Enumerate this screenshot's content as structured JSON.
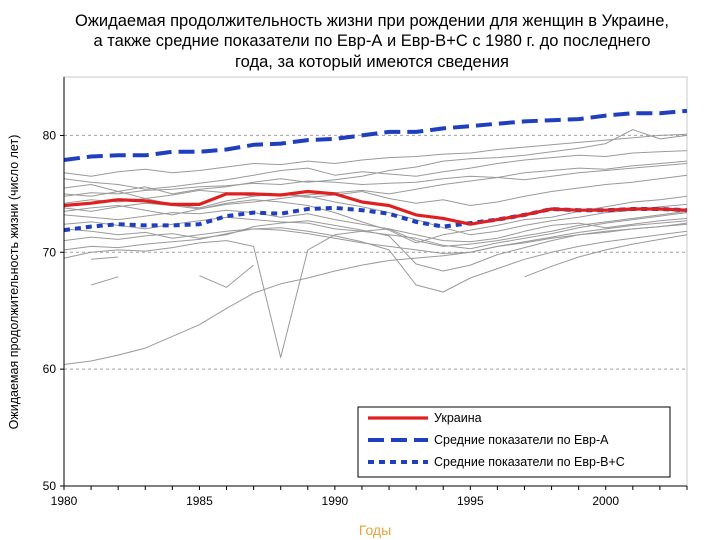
{
  "chart_data": {
    "type": "line",
    "title_lines": [
      "Ожидаемая продолжительность жизни при рождении для женщин в Украине,",
      "а также средние показатели по Евр-А и Евр-В+С с 1980 г. до последнего",
      "года, за который имеются сведения"
    ],
    "xlabel": "Годы",
    "ylabel": "Ожидаемая продолжительность жизни (число лет)",
    "xlim": [
      1980,
      2003
    ],
    "ylim": [
      50,
      85
    ],
    "xticks": [
      "1980",
      "1985",
      "1990",
      "1995",
      "2000"
    ],
    "yticks": [
      "50",
      "60",
      "70",
      "80"
    ],
    "gridlines_y": [
      60,
      70,
      80
    ],
    "x": [
      1980,
      1981,
      1982,
      1983,
      1984,
      1985,
      1986,
      1987,
      1988,
      1989,
      1990,
      1991,
      1992,
      1993,
      1994,
      1995,
      1996,
      1997,
      1998,
      1999,
      2000,
      2001,
      2002,
      2003
    ],
    "series": [
      {
        "name": "Украина",
        "color": "#e02020",
        "style": "solid",
        "width": 3.2,
        "values": [
          74.0,
          74.2,
          74.5,
          74.4,
          74.1,
          74.1,
          75.0,
          75.0,
          74.9,
          75.2,
          75.0,
          74.3,
          74.0,
          73.2,
          72.9,
          72.4,
          72.8,
          73.2,
          73.7,
          73.6,
          73.6,
          73.7,
          73.7,
          73.6
        ]
      },
      {
        "name": "Средние показатели по Евр-А",
        "color": "#1f3fbf",
        "style": "longdash",
        "width": 4,
        "values": [
          77.9,
          78.2,
          78.3,
          78.3,
          78.6,
          78.6,
          78.8,
          79.2,
          79.3,
          79.6,
          79.7,
          80.0,
          80.3,
          80.3,
          80.6,
          80.8,
          81.0,
          81.2,
          81.3,
          81.4,
          81.7,
          81.9,
          81.9,
          82.1
        ]
      },
      {
        "name": "Средние показатели по Евр-В+С",
        "color": "#1f3fbf",
        "style": "shortdash",
        "width": 4,
        "values": [
          71.9,
          72.2,
          72.4,
          72.3,
          72.3,
          72.4,
          73.1,
          73.4,
          73.3,
          73.7,
          73.8,
          73.6,
          73.3,
          72.6,
          72.2,
          72.5,
          72.8,
          73.2,
          73.7,
          73.6,
          73.6,
          73.7,
          73.7,
          73.6
        ]
      }
    ],
    "background_series": [
      {
        "values": [
          75.5,
          75.8,
          75.2,
          75.6,
          75.0,
          75.4,
          75.6,
          76.0,
          76.3,
          76.0,
          76.2,
          76.5,
          77.0,
          77.3,
          77.8,
          78.0,
          78.1,
          78.3,
          78.6,
          78.9,
          79.3,
          80.5,
          79.7,
          80.0
        ]
      },
      {
        "values": [
          76.3,
          76.0,
          75.8,
          75.4,
          75.6,
          75.9,
          76.2,
          76.6,
          77.0,
          77.2,
          76.6,
          76.9,
          76.7,
          76.5,
          76.9,
          77.2,
          77.6,
          77.9,
          78.1,
          78.3,
          78.2,
          78.5,
          78.6,
          78.7
        ]
      },
      {
        "values": [
          74.8,
          75.1,
          75.0,
          75.3,
          75.4,
          75.6,
          75.7,
          75.9,
          75.8,
          76.1,
          76.0,
          75.8,
          75.9,
          76.0,
          76.3,
          76.5,
          76.4,
          76.8,
          77.0,
          77.2,
          77.1,
          77.4,
          77.6,
          77.8
        ]
      },
      {
        "values": [
          75.0,
          74.8,
          75.2,
          74.6,
          74.9,
          75.3,
          75.1,
          74.8,
          75.0,
          74.7,
          74.9,
          75.2,
          74.6,
          74.2,
          74.5,
          74.0,
          74.3,
          74.8,
          75.2,
          75.5,
          75.8,
          76.0,
          76.3,
          76.6
        ]
      },
      {
        "values": [
          73.5,
          73.8,
          74.0,
          73.6,
          73.2,
          73.7,
          74.2,
          74.5,
          74.3,
          74.0,
          73.4,
          72.6,
          71.9,
          70.8,
          71.5,
          71.9,
          72.3,
          72.8,
          73.0,
          73.5,
          73.9,
          74.3,
          74.5,
          74.8
        ]
      },
      {
        "values": [
          73.2,
          73.0,
          72.8,
          73.1,
          73.4,
          73.3,
          73.6,
          73.4,
          73.0,
          73.3,
          72.8,
          72.4,
          72.0,
          71.5,
          71.0,
          70.9,
          71.2,
          71.8,
          72.3,
          72.5,
          72.1,
          72.4,
          72.7,
          72.9
        ]
      },
      {
        "values": [
          72.4,
          72.6,
          72.3,
          72.0,
          72.4,
          72.7,
          73.0,
          72.8,
          72.6,
          72.5,
          72.0,
          71.8,
          71.5,
          71.2,
          70.6,
          70.3,
          70.8,
          71.2,
          71.6,
          72.1,
          72.5,
          72.8,
          73.1,
          73.4
        ]
      },
      {
        "values": [
          74.2,
          74.5,
          74.3,
          74.6,
          74.1,
          73.8,
          74.4,
          74.8,
          75.0,
          74.8,
          74.3,
          73.9,
          73.4,
          72.8,
          72.1,
          71.5,
          71.8,
          72.3,
          72.7,
          73.0,
          73.4,
          73.6,
          73.9,
          74.1
        ]
      },
      {
        "values": [
          72.0,
          71.8,
          71.5,
          71.7,
          71.2,
          71.5,
          71.8,
          72.0,
          71.9,
          71.6,
          71.2,
          70.8,
          70.5,
          70.2,
          69.9,
          70.0,
          70.5,
          70.9,
          71.3,
          71.7,
          72.0,
          72.3,
          72.5,
          72.7
        ]
      },
      {
        "values": [
          76.8,
          76.5,
          76.9,
          77.1,
          76.8,
          77.0,
          77.3,
          77.6,
          77.5,
          77.8,
          77.6,
          77.9,
          78.1,
          78.2,
          78.4,
          78.5,
          78.8,
          79.0,
          79.2,
          79.4,
          79.6,
          79.8,
          80.0,
          80.1
        ]
      },
      {
        "values": [
          71.0,
          71.3,
          71.1,
          71.4,
          71.6,
          71.2,
          71.5,
          72.2,
          72.5,
          72.7,
          72.3,
          71.9,
          71.4,
          69.0,
          68.4,
          68.9,
          69.8,
          70.4,
          71.0,
          71.5,
          71.8,
          72.0,
          72.2,
          72.4
        ]
      },
      {
        "values": [
          70.2,
          70.5,
          70.4,
          70.7,
          70.9,
          71.1,
          71.6,
          72.0,
          72.1,
          71.8,
          71.4,
          70.9,
          70.2,
          67.2,
          66.6,
          67.8,
          68.6,
          69.4,
          70.0,
          70.5,
          70.9,
          71.2,
          71.5,
          71.8
        ]
      },
      {
        "values": [
          69.5,
          70.0,
          70.2,
          70.1,
          70.4,
          70.8,
          71.0,
          70.5,
          61.0,
          70.2,
          71.5,
          71.8,
          72.0,
          71.0,
          70.5,
          70.7,
          71.0,
          71.4,
          71.8,
          72.3,
          72.6,
          72.9,
          73.2,
          73.5
        ]
      },
      {
        "values": [
          73.8,
          73.5,
          73.9,
          74.2,
          74.0,
          73.7,
          74.1,
          74.3,
          74.6,
          74.9,
          75.1,
          75.3,
          75.0,
          75.4,
          75.8,
          76.1,
          76.4,
          76.2,
          76.5,
          76.8,
          77.0,
          77.2,
          77.4,
          77.6
        ]
      },
      {
        "values": [
          60.4,
          60.7,
          61.2,
          61.8,
          62.8,
          63.8,
          65.2,
          66.5,
          67.3,
          67.8,
          68.4,
          68.9,
          69.3,
          69.5,
          69.7,
          70.0,
          70.5,
          70.8,
          71.2,
          71.5,
          71.7,
          72.0,
          72.2,
          72.5
        ]
      },
      {
        "values": [
          null,
          null,
          null,
          null,
          null,
          null,
          null,
          null,
          null,
          null,
          null,
          null,
          null,
          null,
          null,
          null,
          null,
          67.9,
          68.8,
          69.6,
          70.2,
          70.7,
          71.1,
          71.5
        ]
      },
      {
        "values": [
          null,
          67.2,
          67.9,
          null,
          null,
          null,
          null,
          null,
          null,
          null,
          null,
          null,
          null,
          null,
          null,
          null,
          null,
          null,
          null,
          null,
          null,
          null,
          null,
          null
        ]
      },
      {
        "values": [
          null,
          69.4,
          69.6,
          null,
          null,
          null,
          null,
          null,
          null,
          null,
          null,
          null,
          null,
          null,
          null,
          null,
          null,
          null,
          null,
          null,
          null,
          null,
          null,
          null
        ]
      },
      {
        "values": [
          null,
          null,
          null,
          null,
          null,
          68.0,
          67.0,
          68.9,
          null,
          null,
          null,
          null,
          null,
          null,
          null,
          null,
          null,
          null,
          null,
          null,
          null,
          null,
          null,
          null
        ]
      }
    ],
    "legend": {
      "placement": "bottom-right"
    },
    "colors": {
      "background_lines": "#9a9a9a",
      "grid": "#a0a0a0",
      "xlabel": "#e8a23a"
    }
  }
}
